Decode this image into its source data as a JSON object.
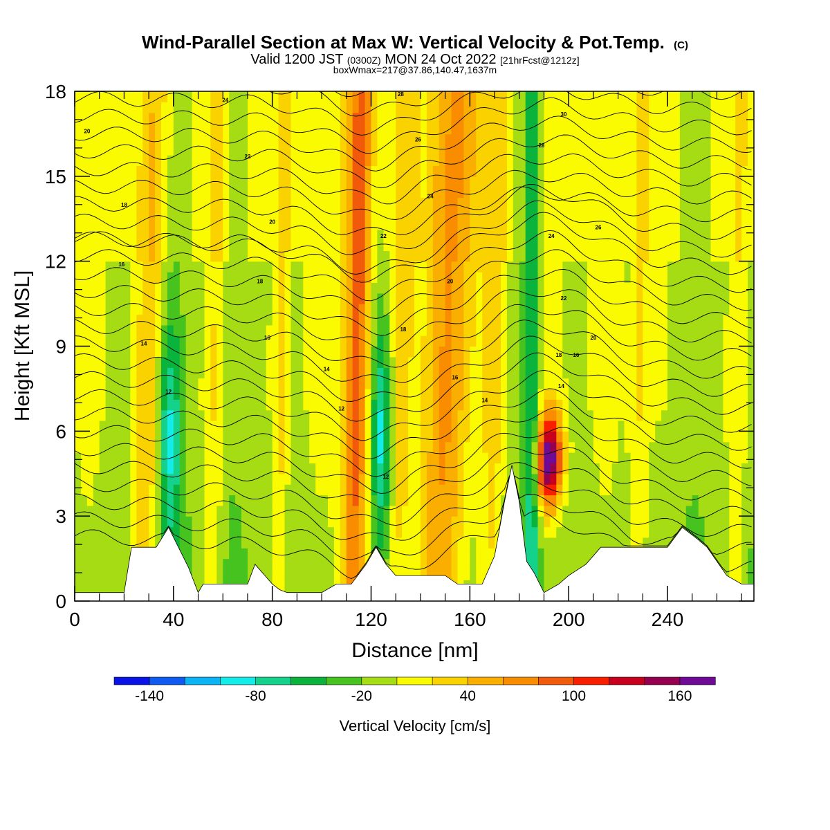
{
  "chart_data": {
    "type": "heatmap",
    "title": "Wind-Parallel Section at Max W: Vertical Velocity & Pot.Temp.",
    "title_mark": "(C)",
    "subtitle_parts": [
      "Valid 1200 JST ",
      "(0300Z)",
      " MON 24 Oct 2022 ",
      "[21hrFcst@1212z]"
    ],
    "subtitle2": "boxWmax=217@37.86,140.47,1637m",
    "xlabel": "Distance [nm]",
    "ylabel": "Height [Kft MSL]",
    "xlim": [
      0,
      275
    ],
    "ylim": [
      0,
      18
    ],
    "x_ticks": [
      0,
      40,
      80,
      120,
      160,
      200,
      240
    ],
    "y_ticks": [
      0,
      3,
      6,
      9,
      12,
      15,
      18
    ],
    "colorbar": {
      "label": "Vertical Velocity [cm/s]",
      "min": -160,
      "max": 180,
      "step": 20,
      "tick_values": [
        -140,
        -80,
        -20,
        40,
        100,
        160
      ],
      "tick_labels": [
        "-140",
        "-80",
        "-20",
        "40",
        "100",
        "160"
      ],
      "colors": [
        "#0a14e6",
        "#0f5af0",
        "#0ab4f5",
        "#14ecea",
        "#14d28c",
        "#0ab43c",
        "#46c31e",
        "#a5dc14",
        "#fafa00",
        "#fad200",
        "#faaf00",
        "#fa8c00",
        "#f05a0a",
        "#fa1e00",
        "#c8001e",
        "#960050",
        "#6e0a96"
      ]
    },
    "terrain": [
      [
        0,
        0.3
      ],
      [
        20,
        0.3
      ],
      [
        23,
        1.9
      ],
      [
        28,
        1.9
      ],
      [
        33,
        1.9
      ],
      [
        38,
        2.6
      ],
      [
        42,
        1.9
      ],
      [
        46,
        1.2
      ],
      [
        50,
        0.3
      ],
      [
        52,
        0.6
      ],
      [
        70,
        0.6
      ],
      [
        73,
        1.3
      ],
      [
        77,
        0.9
      ],
      [
        80,
        0.6
      ],
      [
        83,
        0.4
      ],
      [
        86,
        0.3
      ],
      [
        100,
        0.3
      ],
      [
        106,
        0.6
      ],
      [
        112,
        0.6
      ],
      [
        118,
        1.3
      ],
      [
        122,
        1.9
      ],
      [
        126,
        1.3
      ],
      [
        130,
        0.9
      ],
      [
        134,
        0.9
      ],
      [
        138,
        0.9
      ],
      [
        150,
        0.9
      ],
      [
        155,
        0.6
      ],
      [
        165,
        0.6
      ],
      [
        170,
        1.6
      ],
      [
        174,
        3.5
      ],
      [
        177,
        4.8
      ],
      [
        180,
        3.5
      ],
      [
        183,
        1.4
      ],
      [
        186,
        1.0
      ],
      [
        190,
        0.3
      ],
      [
        196,
        0.6
      ],
      [
        200,
        0.9
      ],
      [
        207,
        1.3
      ],
      [
        213,
        1.9
      ],
      [
        240,
        1.9
      ],
      [
        246,
        2.6
      ],
      [
        252,
        2.2
      ],
      [
        256,
        1.9
      ],
      [
        264,
        0.9
      ],
      [
        270,
        0.6
      ],
      [
        275,
        0.6
      ]
    ],
    "vertical_velocity_bands": [
      {
        "x": 31,
        "w": 6,
        "value": 38
      },
      {
        "x": 38,
        "w": 5,
        "value": -78
      },
      {
        "x": 57,
        "w": 4,
        "value": 28
      },
      {
        "x": 84,
        "w": 3,
        "value": 32
      },
      {
        "x": 110,
        "w": 4,
        "value": 32
      },
      {
        "x": 115,
        "w": 4,
        "value": 82
      },
      {
        "x": 124,
        "w": 4,
        "value": -88
      },
      {
        "x": 133,
        "w": 5,
        "value": 36
      },
      {
        "x": 152,
        "w": 10,
        "value": 72
      },
      {
        "x": 170,
        "w": 5,
        "value": 32
      },
      {
        "x": 185,
        "w": 3,
        "value": -62
      },
      {
        "x": 193,
        "w": 5,
        "value": 185
      },
      {
        "x": 229,
        "w": 4,
        "value": 28
      },
      {
        "x": 269,
        "w": 4,
        "value": 30
      }
    ],
    "theta_contour_labels": [
      {
        "x": 5,
        "y": 16.6,
        "text": "20"
      },
      {
        "x": 61,
        "y": 17.7,
        "text": "24"
      },
      {
        "x": 70,
        "y": 15.7,
        "text": "22"
      },
      {
        "x": 20,
        "y": 14.0,
        "text": "18"
      },
      {
        "x": 80,
        "y": 13.4,
        "text": "20"
      },
      {
        "x": 19,
        "y": 11.9,
        "text": "16"
      },
      {
        "x": 75,
        "y": 11.3,
        "text": "18"
      },
      {
        "x": 28,
        "y": 9.1,
        "text": "14"
      },
      {
        "x": 78,
        "y": 9.3,
        "text": "16"
      },
      {
        "x": 38,
        "y": 7.4,
        "text": "12"
      },
      {
        "x": 102,
        "y": 8.2,
        "text": "14"
      },
      {
        "x": 108,
        "y": 6.8,
        "text": "12"
      },
      {
        "x": 126,
        "y": 4.4,
        "text": "12"
      },
      {
        "x": 132,
        "y": 17.9,
        "text": "28"
      },
      {
        "x": 139,
        "y": 16.3,
        "text": "26"
      },
      {
        "x": 144,
        "y": 14.3,
        "text": "24"
      },
      {
        "x": 125,
        "y": 12.9,
        "text": "22"
      },
      {
        "x": 152,
        "y": 11.3,
        "text": "20"
      },
      {
        "x": 133,
        "y": 9.6,
        "text": "18"
      },
      {
        "x": 154,
        "y": 7.9,
        "text": "16"
      },
      {
        "x": 166,
        "y": 7.1,
        "text": "14"
      },
      {
        "x": 189,
        "y": 16.1,
        "text": "28"
      },
      {
        "x": 198,
        "y": 17.2,
        "text": "30"
      },
      {
        "x": 212,
        "y": 13.2,
        "text": "26"
      },
      {
        "x": 193,
        "y": 12.9,
        "text": "24"
      },
      {
        "x": 198,
        "y": 10.7,
        "text": "22"
      },
      {
        "x": 210,
        "y": 9.3,
        "text": "20"
      },
      {
        "x": 196,
        "y": 8.7,
        "text": "18"
      },
      {
        "x": 203,
        "y": 8.7,
        "text": "16"
      },
      {
        "x": 197,
        "y": 7.6,
        "text": "14"
      }
    ]
  }
}
